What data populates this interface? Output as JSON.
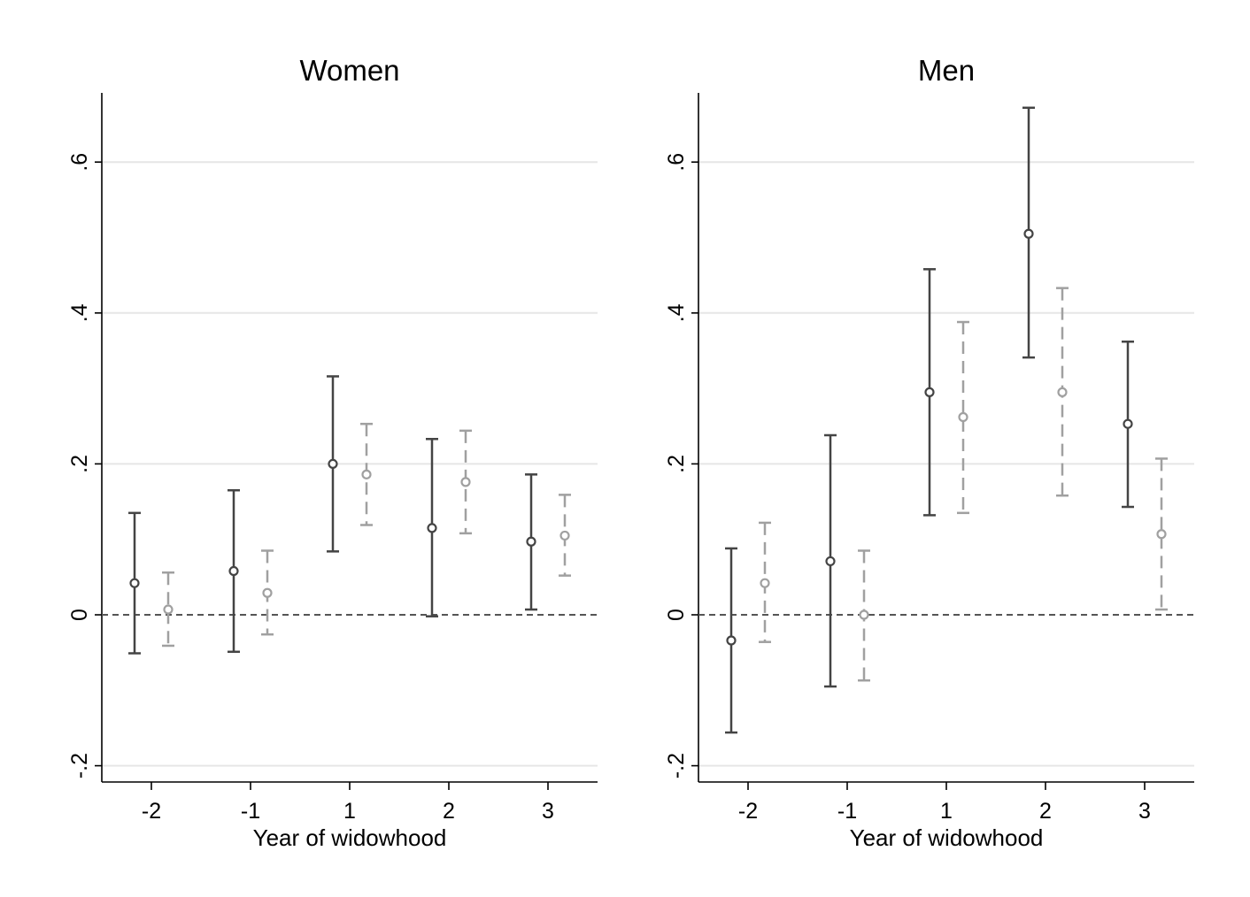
{
  "chart_data": [
    {
      "type": "scatter",
      "title": "Women",
      "xlabel": "Year of widowhood",
      "ylabel": "",
      "categories": [
        "-2",
        "-1",
        "1",
        "2",
        "3"
      ],
      "ylim": [
        -0.2,
        0.69
      ],
      "yticks": [
        -0.2,
        0,
        0.2,
        0.4,
        0.6
      ],
      "ytick_labels": [
        "-.2",
        "0",
        ".2",
        ".4",
        ".6"
      ],
      "grid": true,
      "reference_line": 0,
      "series": [
        {
          "color": "#444444",
          "line_style": "solid",
          "estimate": [
            0.042,
            0.058,
            0.2,
            0.115,
            0.097
          ],
          "ci_low": [
            -0.051,
            -0.049,
            0.084,
            -0.002,
            0.007
          ],
          "ci_high": [
            0.135,
            0.165,
            0.316,
            0.233,
            0.186
          ]
        },
        {
          "color": "#a0a0a0",
          "line_style": "dashed",
          "estimate": [
            0.007,
            0.029,
            0.186,
            0.176,
            0.105
          ],
          "ci_low": [
            -0.041,
            -0.026,
            0.119,
            0.108,
            0.052
          ],
          "ci_high": [
            0.056,
            0.085,
            0.253,
            0.244,
            0.159
          ]
        }
      ]
    },
    {
      "type": "scatter",
      "title": "Men",
      "xlabel": "Year of widowhood",
      "ylabel": "",
      "categories": [
        "-2",
        "-1",
        "1",
        "2",
        "3"
      ],
      "ylim": [
        -0.2,
        0.69
      ],
      "yticks": [
        -0.2,
        0,
        0.2,
        0.4,
        0.6
      ],
      "ytick_labels": [
        "-.2",
        "0",
        ".2",
        ".4",
        ".6"
      ],
      "grid": true,
      "reference_line": 0,
      "series": [
        {
          "color": "#444444",
          "line_style": "solid",
          "estimate": [
            -0.034,
            0.071,
            0.295,
            0.505,
            0.253
          ],
          "ci_low": [
            -0.156,
            -0.095,
            0.132,
            0.341,
            0.143
          ],
          "ci_high": [
            0.088,
            0.238,
            0.458,
            0.672,
            0.362
          ]
        },
        {
          "color": "#a0a0a0",
          "line_style": "dashed",
          "estimate": [
            0.042,
            0.0,
            0.262,
            0.295,
            0.107
          ],
          "ci_low": [
            -0.036,
            -0.087,
            0.135,
            0.158,
            0.007
          ],
          "ci_high": [
            0.122,
            0.085,
            0.388,
            0.433,
            0.207
          ]
        }
      ]
    }
  ]
}
